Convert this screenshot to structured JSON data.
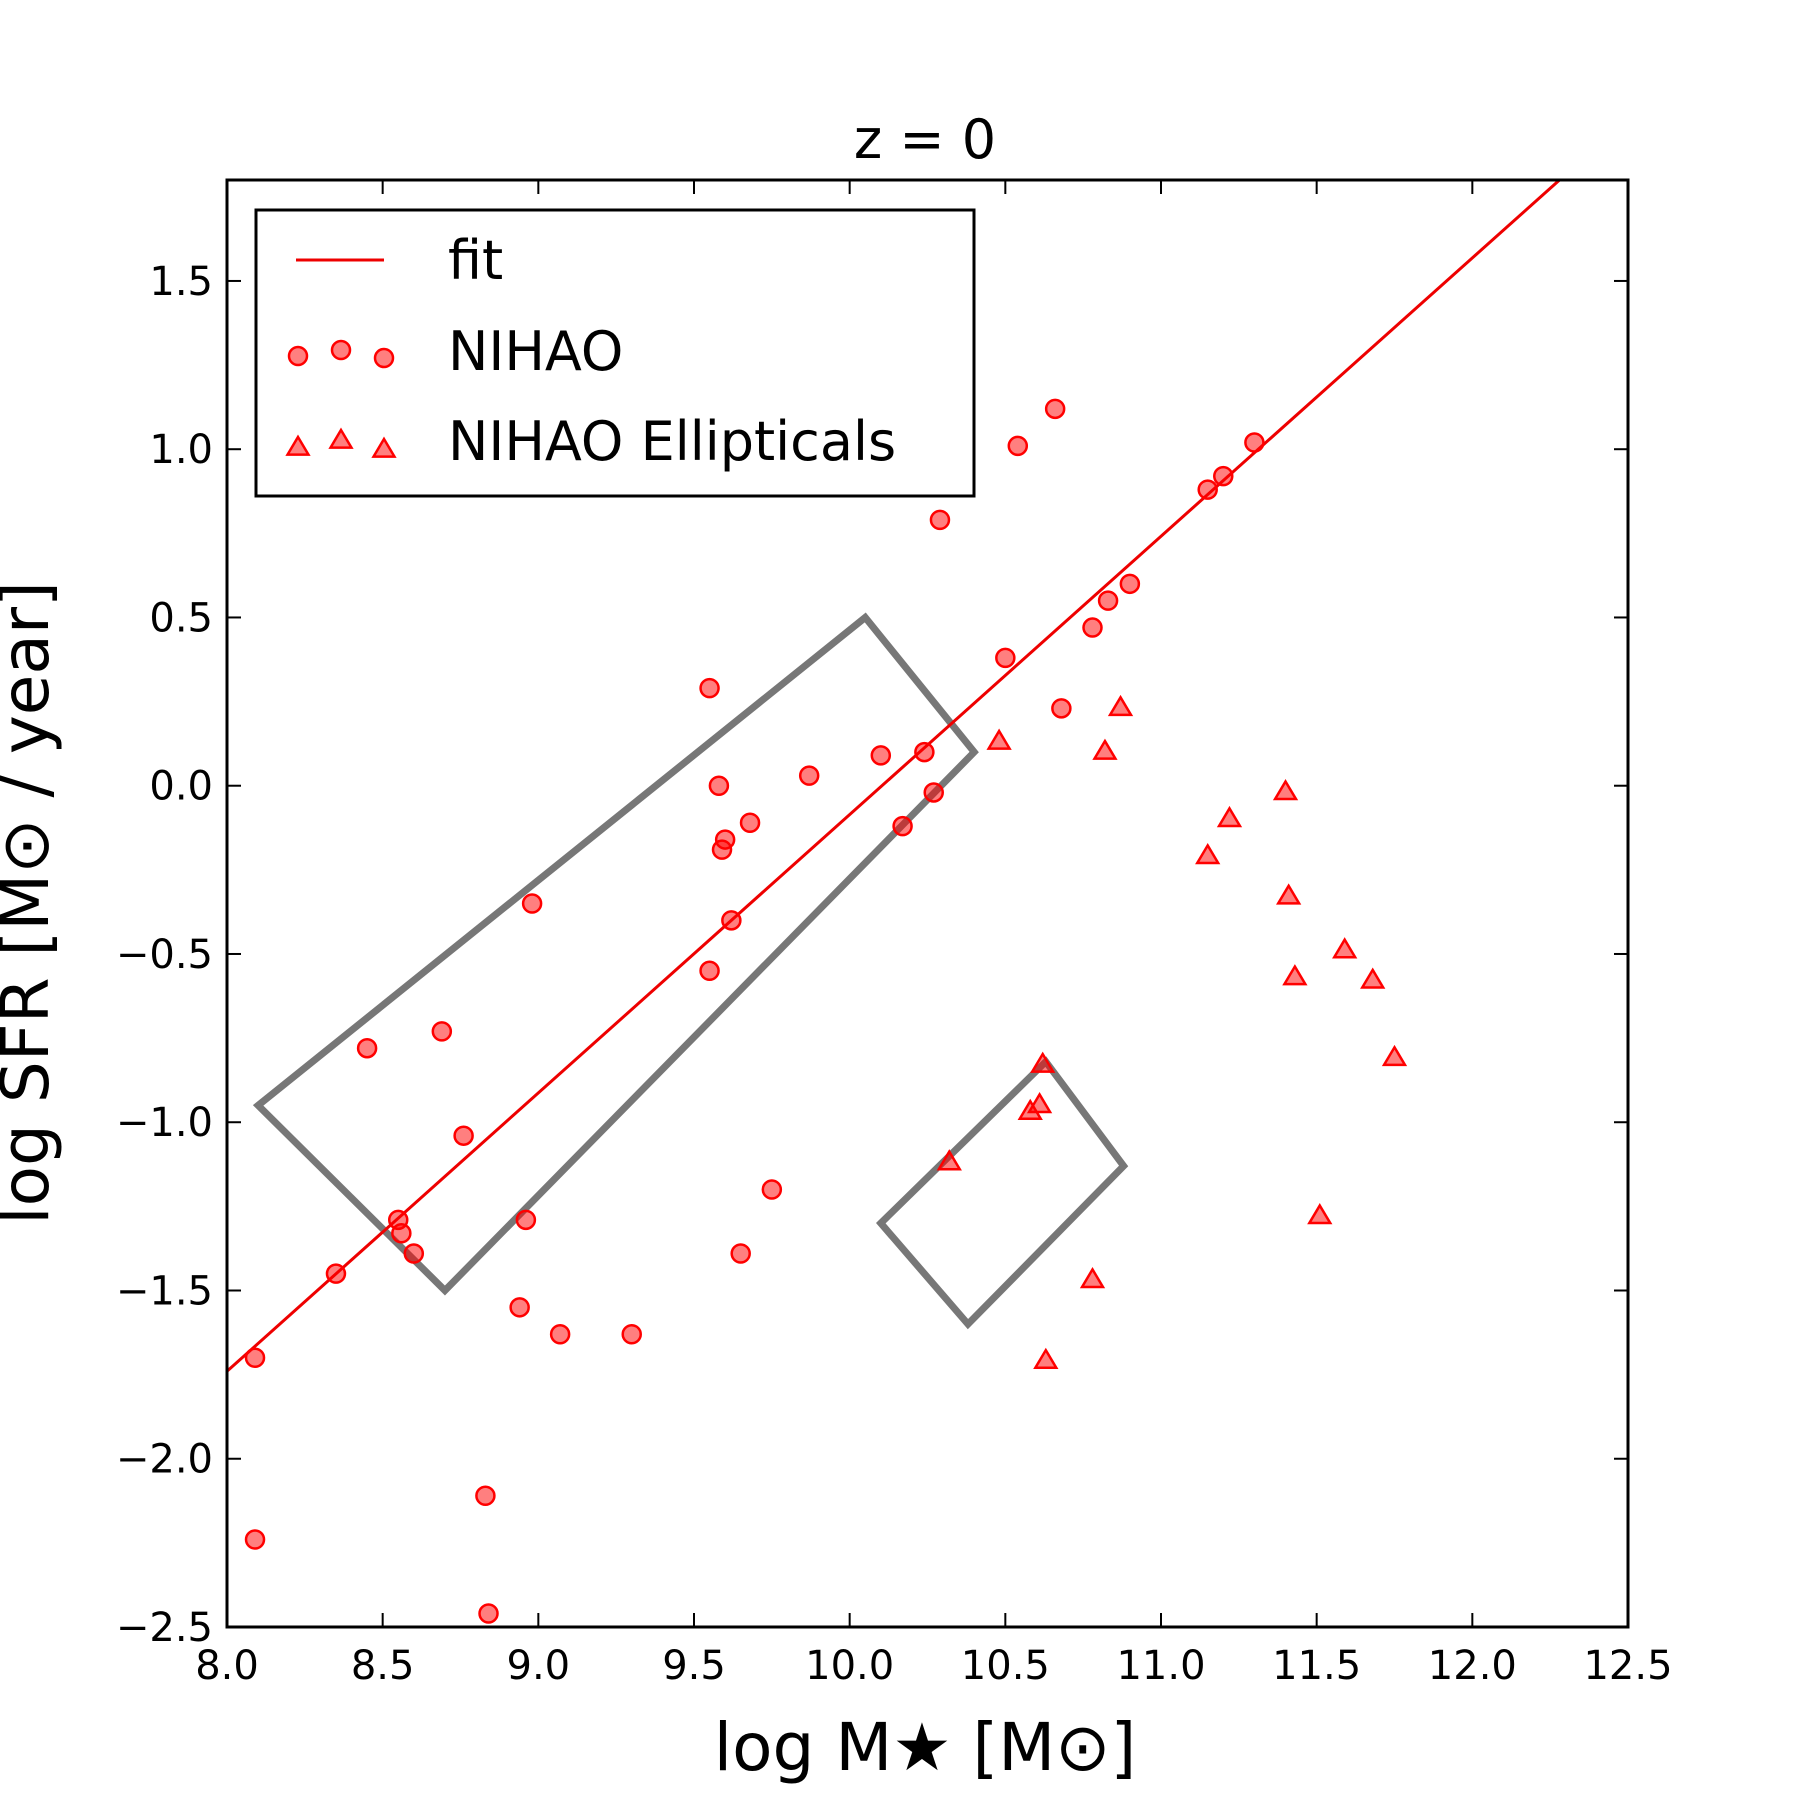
{
  "chart_data": {
    "type": "scatter",
    "title": "z = 0",
    "xlabel": "log M★ [M⊙]",
    "ylabel": "log SFR [M⊙ / year]",
    "xlim": [
      8.0,
      12.5
    ],
    "ylim": [
      -2.5,
      1.8
    ],
    "xticks": [
      "8.0",
      "8.5",
      "9.0",
      "9.5",
      "10.0",
      "10.5",
      "11.0",
      "11.5",
      "12.0",
      "12.5"
    ],
    "yticks": [
      "−2.5",
      "−2.0",
      "−1.5",
      "−1.0",
      "−0.5",
      "0.0",
      "0.5",
      "1.0",
      "1.5"
    ],
    "grid": false,
    "legend_position": "top-left",
    "colors": {
      "series": "#ff0000",
      "fit": "#ee0000",
      "box": "#777777"
    },
    "fit": {
      "name": "fit",
      "x": [
        8.0,
        12.28
      ],
      "y": [
        -1.74,
        1.8
      ]
    },
    "series": [
      {
        "name": "NIHAO",
        "marker": "circle",
        "points": [
          [
            8.09,
            -1.7
          ],
          [
            8.09,
            -2.24
          ],
          [
            8.35,
            -1.45
          ],
          [
            8.45,
            -0.78
          ],
          [
            8.55,
            -1.29
          ],
          [
            8.56,
            -1.33
          ],
          [
            8.6,
            -1.39
          ],
          [
            8.69,
            -0.73
          ],
          [
            8.76,
            -1.04
          ],
          [
            8.83,
            -2.11
          ],
          [
            8.84,
            -2.46
          ],
          [
            8.94,
            -1.55
          ],
          [
            8.96,
            -1.29
          ],
          [
            8.98,
            -0.35
          ],
          [
            9.07,
            -1.63
          ],
          [
            9.3,
            -1.63
          ],
          [
            9.55,
            0.29
          ],
          [
            9.55,
            -0.55
          ],
          [
            9.58,
            0.0
          ],
          [
            9.59,
            -0.19
          ],
          [
            9.6,
            -0.16
          ],
          [
            9.62,
            -0.4
          ],
          [
            9.65,
            -1.39
          ],
          [
            9.68,
            -0.11
          ],
          [
            9.75,
            -1.2
          ],
          [
            9.87,
            0.03
          ],
          [
            10.1,
            0.09
          ],
          [
            10.17,
            -0.12
          ],
          [
            10.24,
            0.1
          ],
          [
            10.27,
            -0.02
          ],
          [
            10.29,
            0.79
          ],
          [
            10.5,
            0.38
          ],
          [
            10.54,
            1.01
          ],
          [
            10.66,
            1.12
          ],
          [
            10.68,
            0.23
          ],
          [
            10.78,
            0.47
          ],
          [
            10.83,
            0.55
          ],
          [
            10.9,
            0.6
          ],
          [
            11.15,
            0.88
          ],
          [
            11.2,
            0.92
          ],
          [
            11.3,
            1.02
          ]
        ]
      },
      {
        "name": "NIHAO Ellipticals",
        "marker": "triangle",
        "points": [
          [
            10.32,
            -1.12
          ],
          [
            10.48,
            0.13
          ],
          [
            10.58,
            -0.97
          ],
          [
            10.61,
            -0.95
          ],
          [
            10.62,
            -0.83
          ],
          [
            10.63,
            -1.71
          ],
          [
            10.78,
            -1.47
          ],
          [
            10.82,
            0.1
          ],
          [
            10.87,
            0.23
          ],
          [
            11.15,
            -0.21
          ],
          [
            11.22,
            -0.1
          ],
          [
            11.4,
            -0.02
          ],
          [
            11.41,
            -0.33
          ],
          [
            11.43,
            -0.57
          ],
          [
            11.51,
            -1.28
          ],
          [
            11.59,
            -0.49
          ],
          [
            11.68,
            -0.58
          ],
          [
            11.75,
            -0.81
          ]
        ]
      }
    ],
    "regions": [
      {
        "vertices": [
          [
            8.1,
            -0.95
          ],
          [
            10.05,
            0.5
          ],
          [
            10.4,
            0.1
          ],
          [
            8.7,
            -1.5
          ]
        ]
      },
      {
        "vertices": [
          [
            10.1,
            -1.3
          ],
          [
            10.63,
            -0.82
          ],
          [
            10.88,
            -1.13
          ],
          [
            10.38,
            -1.6
          ]
        ]
      }
    ]
  }
}
